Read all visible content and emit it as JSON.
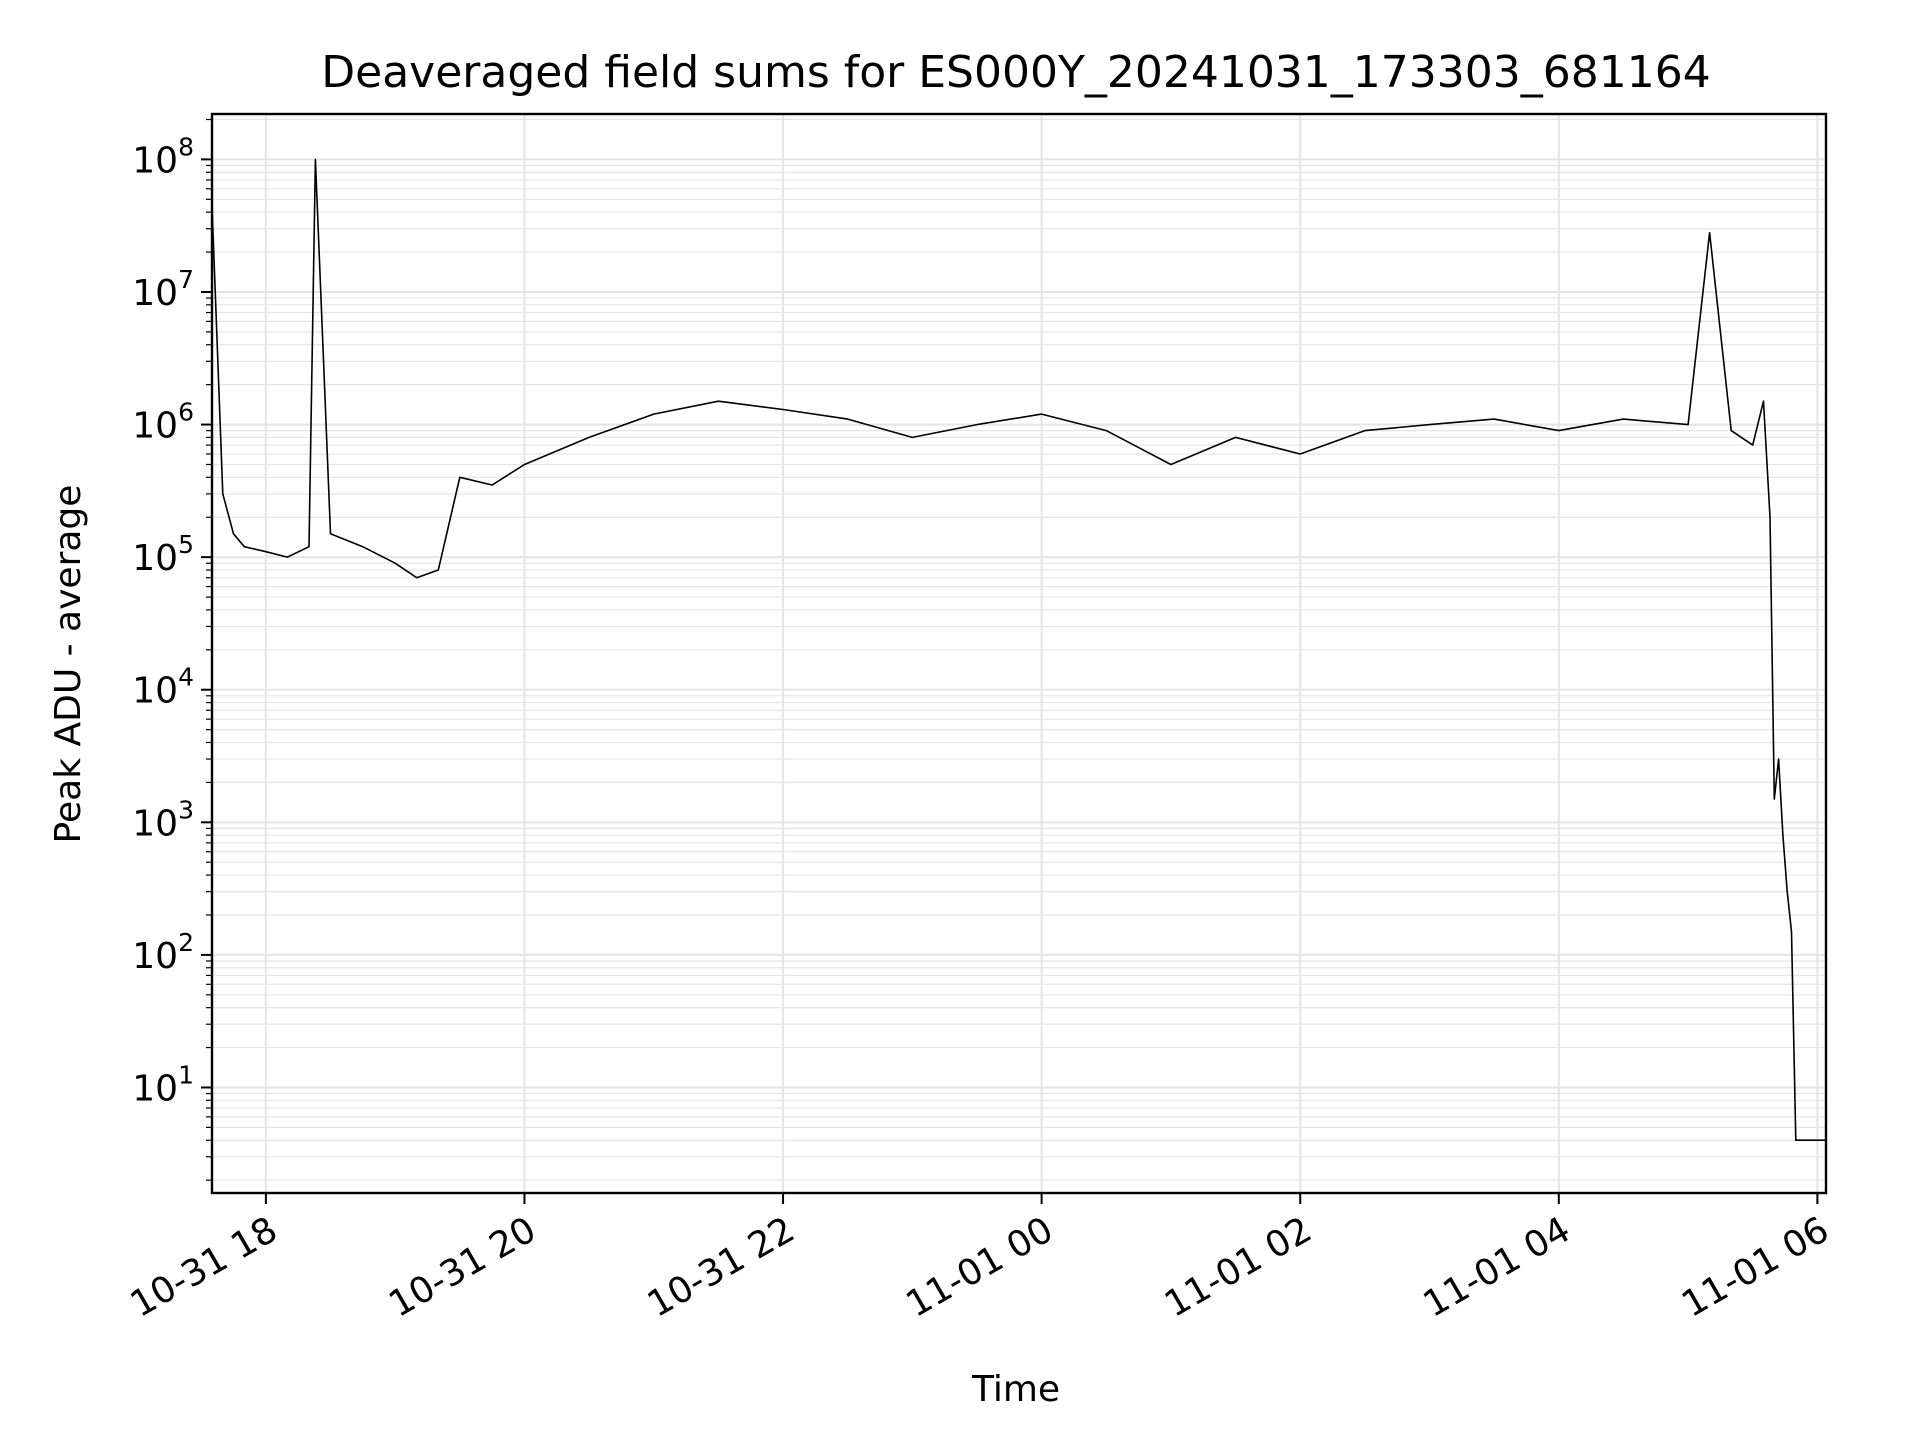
{
  "chart_data": {
    "type": "line",
    "title": "Deaveraged field sums for ES000Y_20241031_173303_681164",
    "xlabel": "Time",
    "ylabel": "Peak ADU - average",
    "yscale": "log",
    "ylim": [
      1.6,
      220000000.0
    ],
    "xlim": [
      "2024-10-31 17:35",
      "2024-11-01 06:04"
    ],
    "grid": true,
    "line_color": "#000000",
    "grid_color": "#e5e5e5",
    "x_ticks": [
      {
        "value": "2024-10-31 18:00",
        "label": "10-31 18"
      },
      {
        "value": "2024-10-31 20:00",
        "label": "10-31 20"
      },
      {
        "value": "2024-10-31 22:00",
        "label": "10-31 22"
      },
      {
        "value": "2024-11-01 00:00",
        "label": "11-01 00"
      },
      {
        "value": "2024-11-01 02:00",
        "label": "11-01 02"
      },
      {
        "value": "2024-11-01 04:00",
        "label": "11-01 04"
      },
      {
        "value": "2024-11-01 06:00",
        "label": "11-01 06"
      }
    ],
    "y_ticks": [
      {
        "value": 10,
        "base": "10",
        "exp": "1"
      },
      {
        "value": 100,
        "base": "10",
        "exp": "2"
      },
      {
        "value": 1000,
        "base": "10",
        "exp": "3"
      },
      {
        "value": 10000,
        "base": "10",
        "exp": "4"
      },
      {
        "value": 100000,
        "base": "10",
        "exp": "5"
      },
      {
        "value": 1000000,
        "base": "10",
        "exp": "6"
      },
      {
        "value": 10000000,
        "base": "10",
        "exp": "7"
      },
      {
        "value": 100000000,
        "base": "10",
        "exp": "8"
      }
    ],
    "series": [
      {
        "x": [
          "2024-10-31 17:35",
          "2024-10-31 17:40",
          "2024-10-31 17:45",
          "2024-10-31 17:50",
          "2024-10-31 18:00",
          "2024-10-31 18:10",
          "2024-10-31 18:20",
          "2024-10-31 18:23",
          "2024-10-31 18:30",
          "2024-10-31 18:45",
          "2024-10-31 19:00",
          "2024-10-31 19:10",
          "2024-10-31 19:20",
          "2024-10-31 19:30",
          "2024-10-31 19:45",
          "2024-10-31 20:00",
          "2024-10-31 20:30",
          "2024-10-31 21:00",
          "2024-10-31 21:30",
          "2024-10-31 22:00",
          "2024-10-31 22:30",
          "2024-10-31 23:00",
          "2024-10-31 23:30",
          "2024-11-01 00:00",
          "2024-11-01 00:30",
          "2024-11-01 01:00",
          "2024-11-01 01:30",
          "2024-11-01 02:00",
          "2024-11-01 02:30",
          "2024-11-01 03:00",
          "2024-11-01 03:30",
          "2024-11-01 04:00",
          "2024-11-01 04:30",
          "2024-11-01 05:00",
          "2024-11-01 05:10",
          "2024-11-01 05:20",
          "2024-11-01 05:30",
          "2024-11-01 05:35",
          "2024-11-01 05:38",
          "2024-11-01 05:40",
          "2024-11-01 05:42",
          "2024-11-01 05:44",
          "2024-11-01 05:46",
          "2024-11-01 05:48",
          "2024-11-01 05:50",
          "2024-11-01 06:04"
        ],
        "y": [
          45000000,
          300000,
          150000,
          120000,
          110000,
          100000,
          120000,
          100000000,
          150000,
          120000,
          90000,
          70000,
          80000,
          400000,
          350000,
          500000,
          800000,
          1200000,
          1500000,
          1300000,
          1100000,
          800000,
          1000000,
          1200000,
          900000,
          500000,
          800000,
          600000,
          900000,
          1000000,
          1100000,
          900000,
          1100000,
          1000000,
          28000000,
          900000,
          700000,
          1500000,
          200000,
          1500,
          3000,
          800,
          300,
          150,
          4,
          4
        ]
      }
    ]
  }
}
